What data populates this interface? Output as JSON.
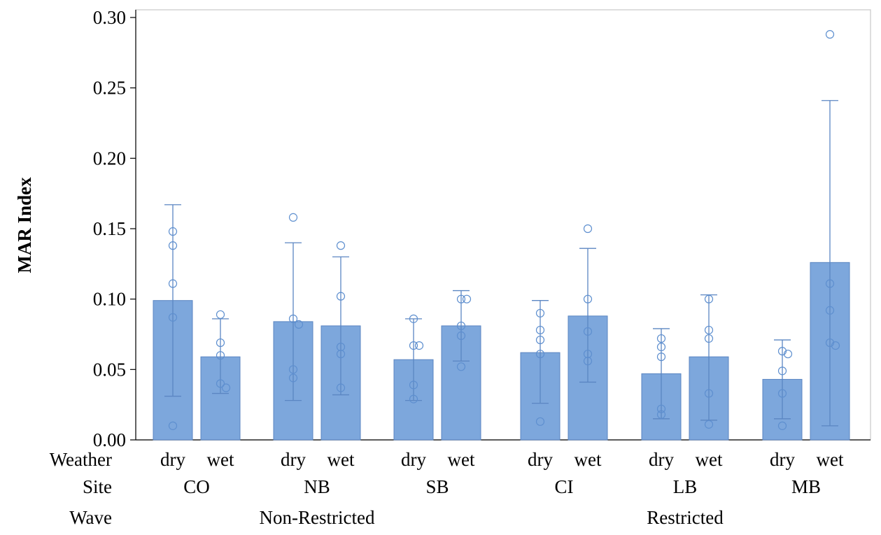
{
  "chart_data": {
    "type": "bar",
    "ylabel": "MAR Index",
    "ylim": [
      0,
      0.3
    ],
    "yticks": [
      "0.00",
      "0.05",
      "0.10",
      "0.15",
      "0.20",
      "0.25",
      "0.30"
    ],
    "grid": false,
    "row_labels": [
      "Weather",
      "Site",
      "Wave"
    ],
    "groups": [
      {
        "wave": "Non-Restricted",
        "sites": [
          {
            "site": "CO",
            "bars": [
              {
                "weather": "dry",
                "value": 0.099,
                "err_low": 0.031,
                "err_high": 0.167,
                "points": [
                  0.148,
                  0.138,
                  0.111,
                  0.087,
                  0.01
                ]
              },
              {
                "weather": "wet",
                "value": 0.059,
                "err_low": 0.033,
                "err_high": 0.086,
                "points": [
                  0.089,
                  0.069,
                  0.06,
                  0.04,
                  0.037
                ]
              }
            ]
          },
          {
            "site": "NB",
            "bars": [
              {
                "weather": "dry",
                "value": 0.084,
                "err_low": 0.028,
                "err_high": 0.14,
                "points": [
                  0.158,
                  0.086,
                  0.082,
                  0.05,
                  0.044
                ]
              },
              {
                "weather": "wet",
                "value": 0.081,
                "err_low": 0.032,
                "err_high": 0.13,
                "points": [
                  0.138,
                  0.102,
                  0.066,
                  0.061,
                  0.037
                ]
              }
            ]
          },
          {
            "site": "SB",
            "bars": [
              {
                "weather": "dry",
                "value": 0.057,
                "err_low": 0.028,
                "err_high": 0.086,
                "points": [
                  0.086,
                  0.067,
                  0.067,
                  0.039,
                  0.029
                ]
              },
              {
                "weather": "wet",
                "value": 0.081,
                "err_low": 0.056,
                "err_high": 0.106,
                "points": [
                  0.1,
                  0.1,
                  0.081,
                  0.074,
                  0.052
                ]
              }
            ]
          }
        ]
      },
      {
        "wave": "Restricted",
        "sites": [
          {
            "site": "CI",
            "bars": [
              {
                "weather": "dry",
                "value": 0.062,
                "err_low": 0.026,
                "err_high": 0.099,
                "points": [
                  0.09,
                  0.078,
                  0.071,
                  0.061,
                  0.013
                ]
              },
              {
                "weather": "wet",
                "value": 0.088,
                "err_low": 0.041,
                "err_high": 0.136,
                "points": [
                  0.15,
                  0.1,
                  0.077,
                  0.061,
                  0.056
                ]
              }
            ]
          },
          {
            "site": "LB",
            "bars": [
              {
                "weather": "dry",
                "value": 0.047,
                "err_low": 0.015,
                "err_high": 0.079,
                "points": [
                  0.072,
                  0.066,
                  0.059,
                  0.022,
                  0.018
                ]
              },
              {
                "weather": "wet",
                "value": 0.059,
                "err_low": 0.014,
                "err_high": 0.103,
                "points": [
                  0.1,
                  0.078,
                  0.072,
                  0.033,
                  0.011
                ]
              }
            ]
          },
          {
            "site": "MB",
            "bars": [
              {
                "weather": "dry",
                "value": 0.043,
                "err_low": 0.015,
                "err_high": 0.071,
                "points": [
                  0.063,
                  0.061,
                  0.049,
                  0.033,
                  0.01
                ]
              },
              {
                "weather": "wet",
                "value": 0.126,
                "err_low": 0.01,
                "err_high": 0.241,
                "points": [
                  0.288,
                  0.111,
                  0.092,
                  0.069,
                  0.067
                ]
              }
            ]
          }
        ]
      }
    ],
    "colors": {
      "bar_fill": "#7da7dc",
      "bar_stroke": "#5b86c2",
      "point_stroke": "#5e8fcf",
      "axis": "#000000",
      "frame": "#c8c8c8"
    }
  }
}
